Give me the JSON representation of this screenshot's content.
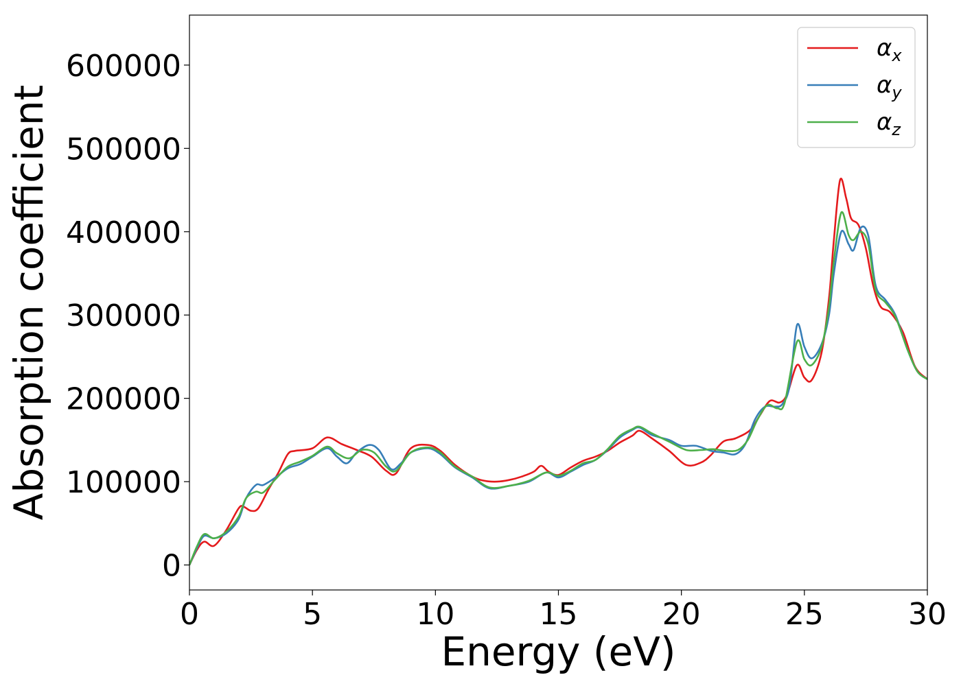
{
  "chart_data": {
    "type": "line",
    "xlabel": "Energy (eV)",
    "ylabel": "Absorption coefficient",
    "xlim": [
      0,
      30
    ],
    "ylim": [
      -30000,
      660000
    ],
    "xticks": [
      0,
      5,
      10,
      15,
      20,
      25,
      30
    ],
    "yticks": [
      0,
      100000,
      200000,
      300000,
      400000,
      500000,
      600000
    ],
    "grid": false,
    "legend_position": "top-right",
    "series": [
      {
        "name": "α_x",
        "symbol": "α",
        "subscript": "x",
        "color": "#e41a1c",
        "x": [
          0,
          0.3,
          0.6,
          1.0,
          1.5,
          2.0,
          2.2,
          2.5,
          2.8,
          3.2,
          3.6,
          4.0,
          4.3,
          5.0,
          5.6,
          6.2,
          6.8,
          7.4,
          8.0,
          8.4,
          9.0,
          9.7,
          10.2,
          10.8,
          11.5,
          12.0,
          12.5,
          13.0,
          13.5,
          14.0,
          14.3,
          14.6,
          15.0,
          15.5,
          16.0,
          16.5,
          17.0,
          17.5,
          18.0,
          18.3,
          18.8,
          19.5,
          20.2,
          20.8,
          21.2,
          21.7,
          22.2,
          22.8,
          23.2,
          23.6,
          24.0,
          24.3,
          24.7,
          25.0,
          25.3,
          25.7,
          26.0,
          26.2,
          26.45,
          26.7,
          26.9,
          27.2,
          27.5,
          27.8,
          28.1,
          28.5,
          29.0,
          29.5,
          30.0
        ],
        "y": [
          0,
          18000,
          28000,
          23000,
          42000,
          68000,
          70000,
          65000,
          68000,
          90000,
          110000,
          133000,
          137000,
          140000,
          153000,
          145000,
          138000,
          130000,
          113000,
          110000,
          140000,
          144000,
          137000,
          120000,
          106000,
          101000,
          100000,
          102000,
          106000,
          112000,
          119000,
          112000,
          108000,
          117000,
          125000,
          130000,
          137000,
          147000,
          155000,
          161000,
          152000,
          137000,
          120000,
          123000,
          132000,
          148000,
          152000,
          162000,
          180000,
          197000,
          195000,
          205000,
          240000,
          225000,
          222000,
          255000,
          320000,
          390000,
          462000,
          440000,
          416000,
          408000,
          380000,
          335000,
          310000,
          303000,
          280000,
          238000,
          223000
        ]
      },
      {
        "name": "α_y",
        "symbol": "α",
        "subscript": "y",
        "color": "#377eb8",
        "x": [
          0,
          0.3,
          0.6,
          1.0,
          1.5,
          2.0,
          2.3,
          2.7,
          3.0,
          3.5,
          4.0,
          4.5,
          5.0,
          5.6,
          6.0,
          6.4,
          6.8,
          7.3,
          7.7,
          8.2,
          8.6,
          9.0,
          9.7,
          10.2,
          10.8,
          11.5,
          12.2,
          13.0,
          13.8,
          14.5,
          15.0,
          15.5,
          16.0,
          16.5,
          17.0,
          17.5,
          18.0,
          18.3,
          18.8,
          19.5,
          20.0,
          20.6,
          21.2,
          21.7,
          22.2,
          22.6,
          23.0,
          23.4,
          23.8,
          24.1,
          24.4,
          24.7,
          25.0,
          25.3,
          25.7,
          26.0,
          26.2,
          26.5,
          26.8,
          27.0,
          27.3,
          27.6,
          27.9,
          28.3,
          28.7,
          29.2,
          29.6,
          30.0
        ],
        "y": [
          0,
          20000,
          35000,
          32000,
          38000,
          55000,
          80000,
          96000,
          96000,
          105000,
          116000,
          121000,
          130000,
          140000,
          130000,
          122000,
          135000,
          144000,
          138000,
          115000,
          122000,
          135000,
          140000,
          133000,
          117000,
          105000,
          92000,
          95000,
          100000,
          111000,
          105000,
          112000,
          120000,
          126000,
          138000,
          153000,
          162000,
          165000,
          156000,
          150000,
          143000,
          143000,
          137000,
          135000,
          133000,
          145000,
          175000,
          190000,
          190000,
          193000,
          215000,
          288000,
          262000,
          248000,
          265000,
          300000,
          350000,
          400000,
          385000,
          378000,
          405000,
          395000,
          335000,
          318000,
          300000,
          258000,
          232000,
          223000
        ]
      },
      {
        "name": "α_z",
        "symbol": "α",
        "subscript": "z",
        "color": "#4daf4a",
        "x": [
          0,
          0.3,
          0.6,
          1.0,
          1.5,
          2.0,
          2.3,
          2.7,
          3.0,
          3.5,
          4.0,
          4.5,
          5.0,
          5.6,
          6.0,
          6.5,
          7.0,
          7.5,
          8.0,
          8.4,
          9.0,
          9.7,
          10.2,
          10.8,
          11.5,
          12.2,
          13.0,
          13.8,
          14.5,
          15.0,
          15.5,
          16.0,
          16.5,
          17.0,
          17.5,
          18.0,
          18.3,
          18.8,
          19.5,
          20.2,
          20.8,
          21.3,
          21.8,
          22.3,
          22.7,
          23.1,
          23.5,
          23.9,
          24.2,
          24.7,
          25.0,
          25.3,
          25.7,
          26.0,
          26.2,
          26.5,
          26.8,
          27.0,
          27.3,
          27.6,
          27.9,
          28.3,
          28.7,
          29.2,
          29.6,
          30.0
        ],
        "y": [
          0,
          22000,
          37000,
          32000,
          40000,
          58000,
          80000,
          88000,
          87000,
          103000,
          118000,
          124000,
          131000,
          142000,
          134000,
          128000,
          138000,
          135000,
          118000,
          113000,
          135000,
          141000,
          135000,
          118000,
          106000,
          93000,
          95000,
          101000,
          111000,
          107000,
          113000,
          122000,
          126000,
          139000,
          155000,
          163000,
          166000,
          158000,
          148000,
          138000,
          138000,
          139000,
          137000,
          138000,
          150000,
          175000,
          192000,
          188000,
          195000,
          268000,
          247000,
          240000,
          262000,
          310000,
          365000,
          423000,
          396000,
          390000,
          400000,
          385000,
          330000,
          315000,
          298000,
          258000,
          232000,
          223000
        ]
      }
    ]
  }
}
